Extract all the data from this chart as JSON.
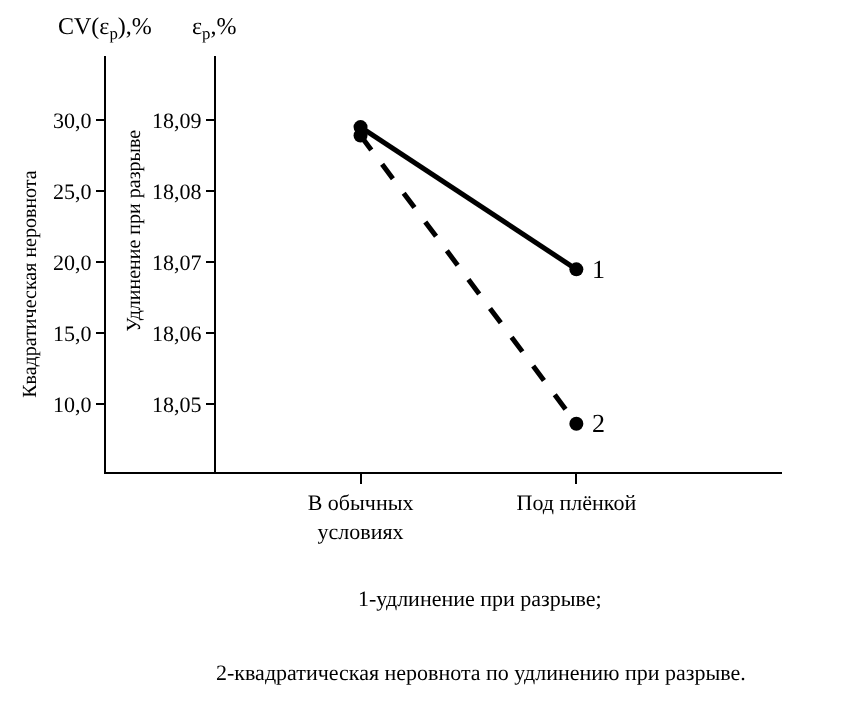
{
  "chart_data": {
    "type": "line",
    "categories": [
      "В обычных\nусловиях",
      "Под плёнкой"
    ],
    "ylabel": "Квадратическая неровнота",
    "y2label": "Удлинение при разрыве",
    "ylim": [
      5.2,
      34.5
    ],
    "yticks": [
      {
        "value": 10,
        "label": "10,0"
      },
      {
        "value": 15,
        "label": "15,0"
      },
      {
        "value": 20,
        "label": "20,0"
      },
      {
        "value": 25,
        "label": "25,0"
      },
      {
        "value": 30,
        "label": "30,0"
      }
    ],
    "y2lim": [
      18.0405,
      18.099
    ],
    "y2ticks": [
      {
        "value": 18.05,
        "label": "18,05"
      },
      {
        "value": 18.06,
        "label": "18,06"
      },
      {
        "value": 18.07,
        "label": "18,07"
      },
      {
        "value": 18.08,
        "label": "18,08"
      },
      {
        "value": 18.09,
        "label": "18,09"
      }
    ],
    "series": [
      {
        "name": "1",
        "color": "#000000",
        "values": [
          18.089,
          18.069
        ],
        "axis": "y2",
        "line_style": "solid"
      },
      {
        "name": "2",
        "color": "#000000",
        "values": [
          28.9,
          8.6
        ],
        "axis": "y",
        "line_style": "dashed"
      }
    ],
    "marker": "circle",
    "legend": false,
    "annotations": [
      "CV(ε$_{p}$),%",
      "ε$_{p}$,%",
      "1-удлинение при разрыве;",
      "2-квадратическая неровнота по удлинению при разрыве."
    ]
  }
}
